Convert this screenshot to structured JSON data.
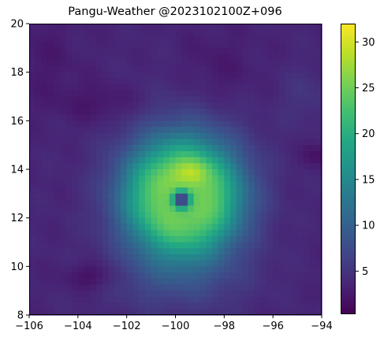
{
  "chart_data": {
    "type": "heatmap",
    "title": "Pangu-Weather @2023102100Z+096",
    "xlabel": "",
    "ylabel": "",
    "xlim": [
      -106,
      -94
    ],
    "ylim": [
      8,
      20
    ],
    "x_ticks": [
      -106,
      -104,
      -102,
      -100,
      -98,
      -96,
      -94
    ],
    "y_ticks": [
      8,
      10,
      12,
      14,
      16,
      18,
      20
    ],
    "x_tick_labels": [
      "−106",
      "−104",
      "−102",
      "−100",
      "−98",
      "−96",
      "−94"
    ],
    "y_tick_labels": [
      "8",
      "10",
      "12",
      "14",
      "16",
      "18",
      "20"
    ],
    "colormap": "viridis",
    "colorbar": {
      "min": 0.3,
      "max": 32,
      "ticks": [
        5,
        10,
        15,
        20,
        25,
        30
      ],
      "tick_labels": [
        "5",
        "10",
        "15",
        "20",
        "25",
        "30"
      ]
    },
    "grid": false,
    "field": {
      "resolution_deg": 0.25,
      "background": 3.6,
      "components": [
        {
          "kind": "ring",
          "lon": -99.7,
          "lat": 12.8,
          "peak": 19.5,
          "radius": 1.0,
          "width": 1.6
        },
        {
          "kind": "blob",
          "lon": -99.7,
          "lat": 13.2,
          "peak": 6.5,
          "sx": 2.6,
          "sy": 2.9
        },
        {
          "kind": "blob",
          "lon": -99.3,
          "lat": 13.9,
          "peak": 3.5,
          "sx": 0.7,
          "sy": 0.5
        },
        {
          "kind": "eye",
          "lon": -99.75,
          "lat": 12.75,
          "depth": 0.92,
          "radius": 0.3
        },
        {
          "kind": "blob",
          "lon": -100.0,
          "lat": 9.5,
          "peak": 3.0,
          "sx": 3.0,
          "sy": 1.4
        },
        {
          "kind": "blob",
          "lon": -103.4,
          "lat": 9.6,
          "peak": -2.6,
          "sx": 1.1,
          "sy": 0.6
        },
        {
          "kind": "blob",
          "lon": -103.0,
          "lat": 16.7,
          "peak": -1.6,
          "sx": 1.6,
          "sy": 0.8
        },
        {
          "kind": "blob",
          "lon": -105.3,
          "lat": 18.5,
          "peak": -1.0,
          "sx": 1.3,
          "sy": 2.0
        },
        {
          "kind": "blob",
          "lon": -98.3,
          "lat": 18.0,
          "peak": -1.2,
          "sx": 1.5,
          "sy": 1.6
        },
        {
          "kind": "blob",
          "lon": -94.2,
          "lat": 14.6,
          "peak": -2.0,
          "sx": 0.6,
          "sy": 0.5
        },
        {
          "kind": "blob",
          "lon": -94.7,
          "lat": 17.0,
          "peak": 1.5,
          "sx": 1.0,
          "sy": 1.2
        }
      ]
    }
  }
}
